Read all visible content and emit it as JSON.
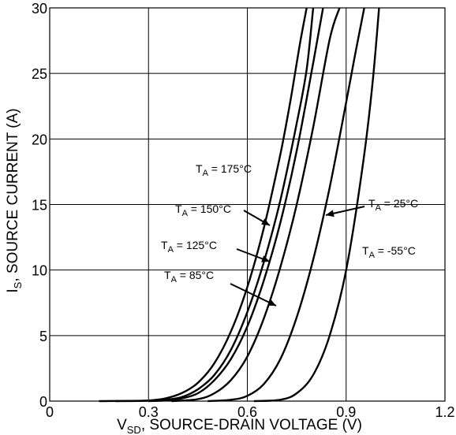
{
  "chart_data": {
    "type": "line",
    "xlabel": {
      "prefix": "V",
      "sub": "SD",
      "rest": ", SOURCE-DRAIN VOLTAGE (V)"
    },
    "ylabel": {
      "prefix": "I",
      "sub": "S",
      "rest": ", SOURCE CURRENT (A)"
    },
    "xlim": [
      0,
      1.2
    ],
    "ylim": [
      0,
      30
    ],
    "x_ticks": [
      0,
      0.3,
      0.6,
      0.9,
      1.2
    ],
    "x_tick_labels": [
      "0",
      "0.3",
      "0.6",
      "0.9",
      "1.2"
    ],
    "y_ticks": [
      0,
      5,
      10,
      15,
      20,
      25,
      30
    ],
    "y_tick_labels": [
      "0",
      "5",
      "10",
      "15",
      "20",
      "25",
      "30"
    ],
    "grid": true,
    "series": [
      {
        "name": "T_A = 175°C",
        "x": [
          0.15,
          0.25,
          0.3,
          0.35,
          0.4,
          0.45,
          0.5,
          0.55,
          0.6,
          0.65,
          0.7,
          0.73,
          0.76,
          0.78
        ],
        "y": [
          0,
          0.02,
          0.05,
          0.2,
          0.6,
          1.4,
          2.9,
          5.3,
          8.7,
          13.2,
          18.8,
          22.8,
          27.3,
          30
        ]
      },
      {
        "name": "T_A = 150°C",
        "x": [
          0.2,
          0.3,
          0.35,
          0.4,
          0.45,
          0.5,
          0.55,
          0.6,
          0.65,
          0.7,
          0.75,
          0.78,
          0.8
        ],
        "y": [
          0,
          0.03,
          0.1,
          0.3,
          0.9,
          2.0,
          3.9,
          6.8,
          10.6,
          15.3,
          21.2,
          25.3,
          30
        ]
      },
      {
        "name": "T_A = 125°C",
        "x": [
          0.3,
          0.35,
          0.4,
          0.45,
          0.5,
          0.55,
          0.6,
          0.65,
          0.7,
          0.75,
          0.8,
          0.83
        ],
        "y": [
          0,
          0.05,
          0.2,
          0.6,
          1.6,
          3.2,
          5.7,
          9.2,
          13.6,
          19.1,
          25.8,
          30
        ]
      },
      {
        "name": "T_A = 85°C",
        "x": [
          0.37,
          0.45,
          0.5,
          0.55,
          0.6,
          0.65,
          0.7,
          0.75,
          0.8,
          0.85,
          0.88
        ],
        "y": [
          0,
          0.15,
          0.6,
          1.6,
          3.4,
          6.3,
          10.2,
          15.0,
          20.9,
          27.6,
          30
        ]
      },
      {
        "name": "T_A = 25°C",
        "x": [
          0.48,
          0.55,
          0.6,
          0.65,
          0.7,
          0.75,
          0.8,
          0.85,
          0.9,
          0.93,
          0.955
        ],
        "y": [
          0,
          0.1,
          0.4,
          1.3,
          3.2,
          6.4,
          10.8,
          16.3,
          22.8,
          26.8,
          30
        ]
      },
      {
        "name": "T_A = -55°C",
        "x": [
          0.62,
          0.7,
          0.75,
          0.8,
          0.85,
          0.9,
          0.95,
          0.98,
          1.0
        ],
        "y": [
          0,
          0.1,
          0.6,
          2.0,
          5.0,
          10.0,
          17.9,
          24.2,
          30
        ]
      }
    ],
    "annotations": [
      {
        "prefix": "T",
        "sub": "A",
        "rest": " = 175°C"
      },
      {
        "prefix": "T",
        "sub": "A",
        "rest": " = 150°C"
      },
      {
        "prefix": "T",
        "sub": "A",
        "rest": " = 125°C"
      },
      {
        "prefix": "T",
        "sub": "A",
        "rest": " = 85°C"
      },
      {
        "prefix": "T",
        "sub": "A",
        "rest": " = 25°C"
      },
      {
        "prefix": "T",
        "sub": "A",
        "rest": " = -55°C"
      }
    ]
  }
}
